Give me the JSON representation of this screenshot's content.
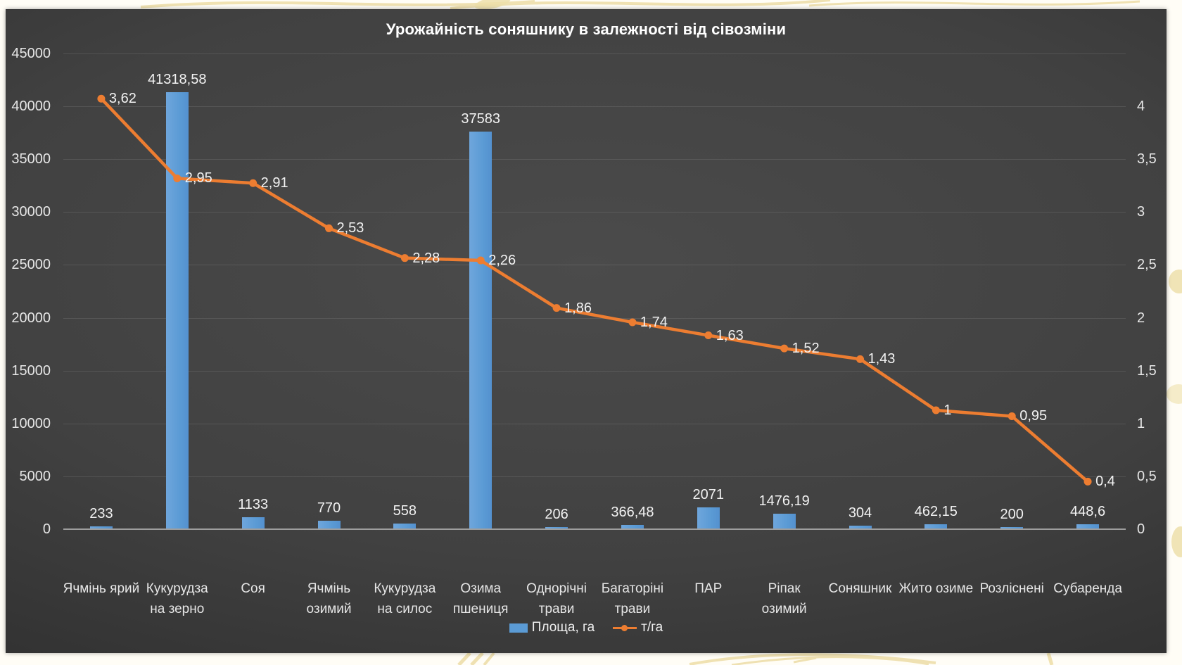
{
  "chart_data": {
    "type": "combo-bar-line",
    "title": "Урожайність соняшнику в залежності від сівозміни",
    "categories": [
      "Ячмінь ярий",
      "Кукурудза на зерно",
      "Соя",
      "Ячмінь озимий",
      "Кукурудза на силос",
      "Озима пшениця",
      "Однорічні трави",
      "Багаторіні трави",
      "ПАР",
      "Ріпак озимий",
      "Соняшник",
      "Жито озиме",
      "Розліснені",
      "Субаренда"
    ],
    "series": [
      {
        "name": "Площа, га",
        "type": "bar",
        "axis": "left",
        "color": "#5B9BD5",
        "values": [
          233,
          41318.58,
          1133,
          770,
          558,
          37583,
          206,
          366.48,
          2071,
          1476.19,
          304,
          462.15,
          200,
          448.6
        ],
        "labels": [
          "233",
          "41318,58",
          "1133",
          "770",
          "558",
          "37583",
          "206",
          "366,48",
          "2071",
          "1476,19",
          "304",
          "462,15",
          "200",
          "448,6"
        ]
      },
      {
        "name": "т/га",
        "type": "line",
        "axis": "right",
        "color": "#ED7D31",
        "values": [
          3.62,
          2.95,
          2.91,
          2.53,
          2.28,
          2.26,
          1.86,
          1.74,
          1.63,
          1.52,
          1.43,
          1,
          0.95,
          0.4
        ],
        "labels": [
          "3,62",
          "2,95",
          "2,91",
          "2,53",
          "2,28",
          "2,26",
          "1,86",
          "1,74",
          "1,63",
          "1,52",
          "1,43",
          "1",
          "0,95",
          "0,4"
        ]
      }
    ],
    "left_axis": {
      "min": 0,
      "max": 45000,
      "step": 5000,
      "tick_labels": [
        "0",
        "5000",
        "10000",
        "15000",
        "20000",
        "25000",
        "30000",
        "35000",
        "40000",
        "45000"
      ]
    },
    "right_axis": {
      "min": 0,
      "max": 4,
      "step": 0.5,
      "tick_labels": [
        "0",
        "0,5",
        "1",
        "1,5",
        "2",
        "2,5",
        "3",
        "3,5",
        "4"
      ]
    },
    "grid": true,
    "legend_position": "bottom",
    "legend": [
      {
        "label": "Площа, га",
        "marker": "square",
        "color": "#5B9BD5"
      },
      {
        "label": "т/га",
        "marker": "line-dot",
        "color": "#ED7D31"
      }
    ]
  },
  "colors": {
    "panel_background": "#3f3f3f",
    "page_background": "#fffdf6",
    "decoration_gold": "#eedfab",
    "grid_line": "rgba(255,255,255,0.10)",
    "x_axis_line": "#9e9e9e",
    "tick_text": "#e6e6e6",
    "data_label_text": "#f2f2f2",
    "title_text": "#ffffff"
  }
}
